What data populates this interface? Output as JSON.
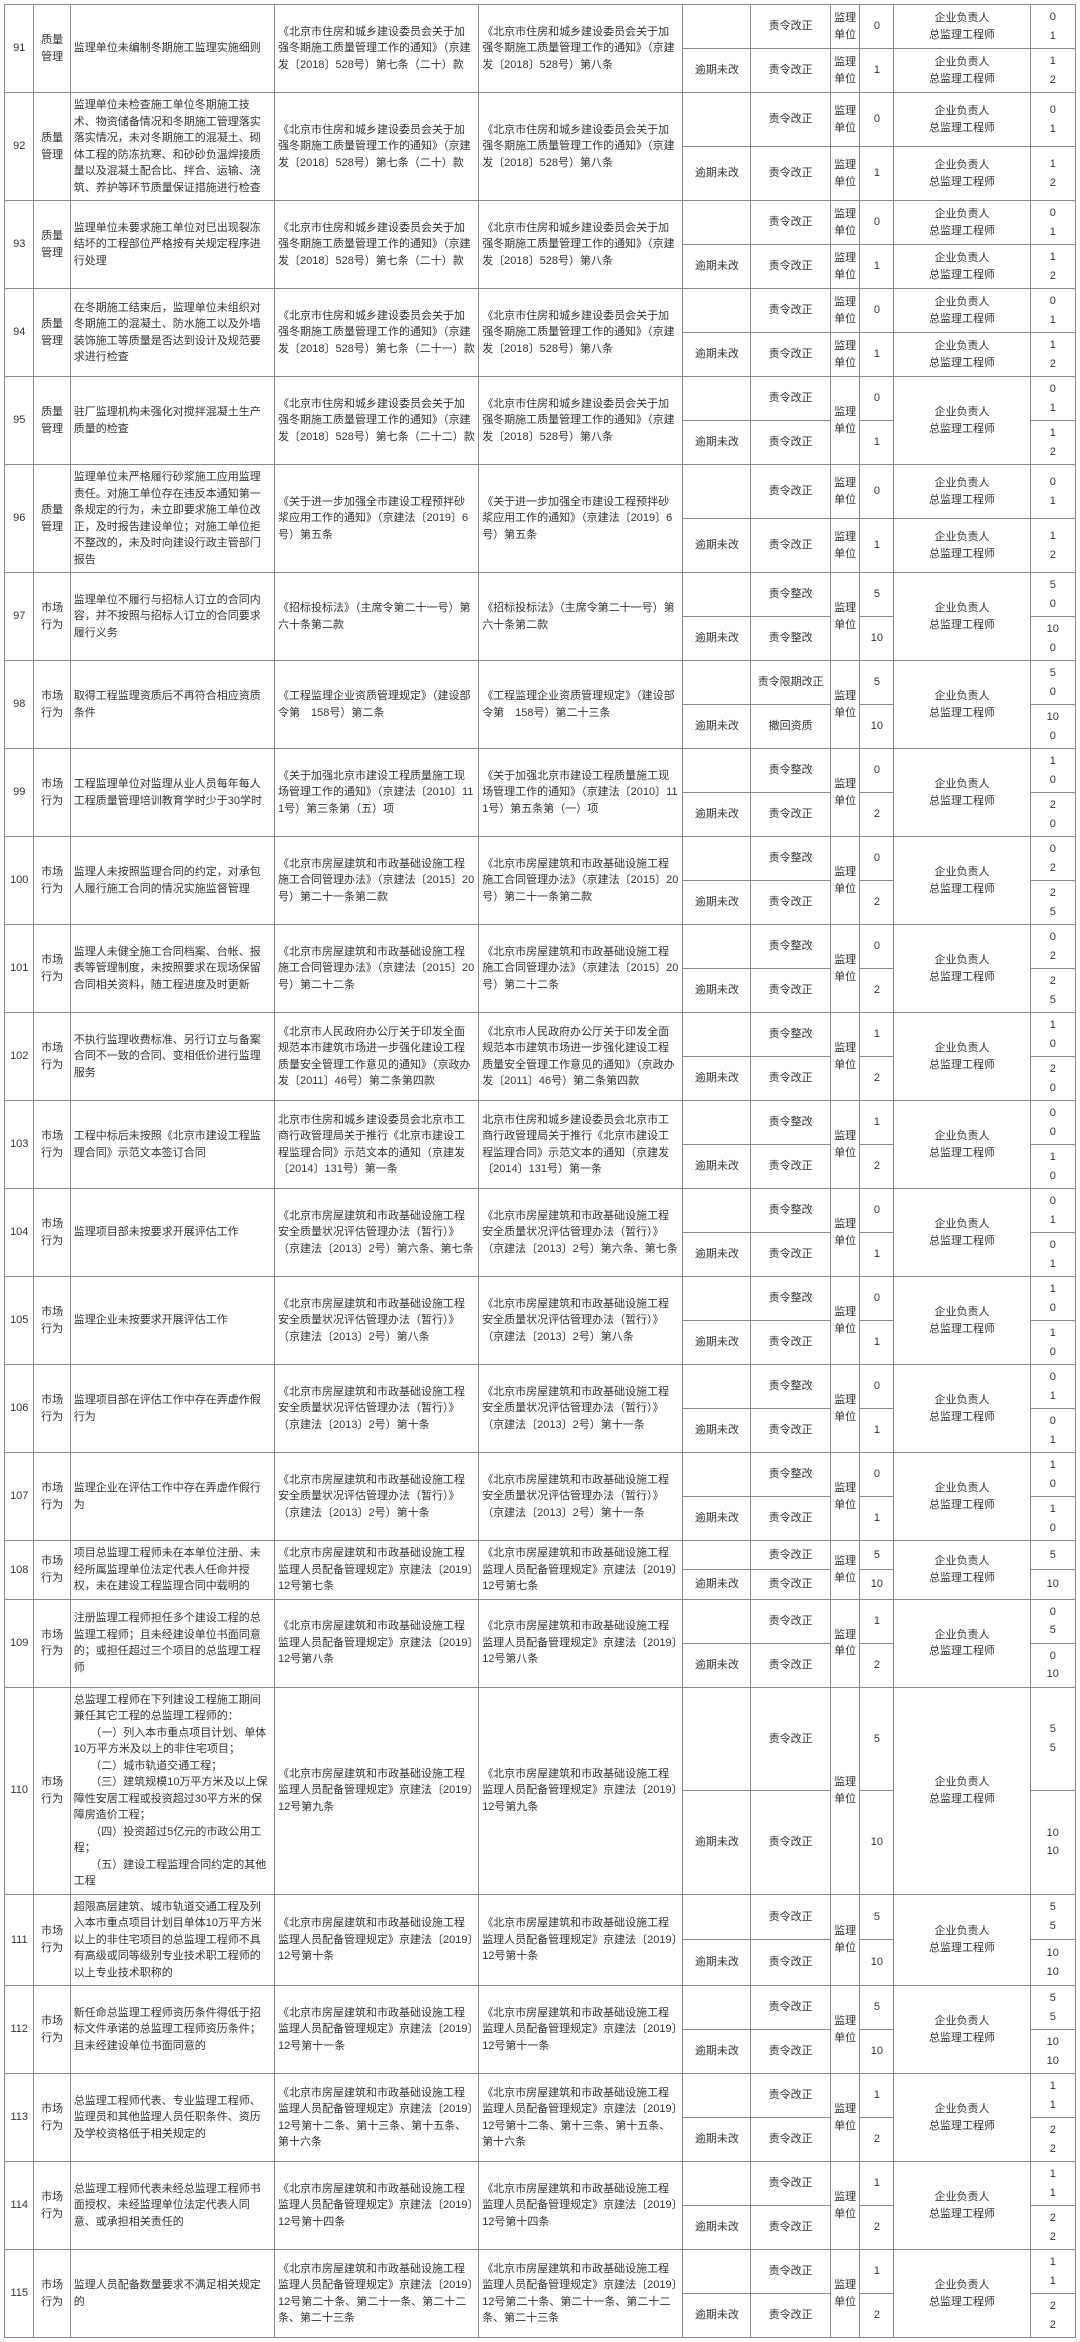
{
  "labels": {
    "deadline_not": "逾期未改",
    "order_fix": "责令改正",
    "order_rect": "责令整改",
    "order_limit": "责令限期改正",
    "revoke": "撤回资质",
    "unit": "监理单位",
    "resp": "企业负责人\n总监理工程师"
  },
  "rows": [
    {
      "idx": "91",
      "cat": "质量管理",
      "beh": "监理单位未编制冬期施工监理实施细则",
      "reg1": "《北京市住房和城乡建设委员会关于加强冬期施工质量管理工作的通知》（京建发〔2018〕528号）第七条（二十）款",
      "reg2": "《北京市住房和城乡建设委员会关于加强冬期施工质量管理工作的通知》（京建发〔2018〕528号）第八条",
      "sub": [
        {
          "stat": "",
          "act": "order_fix",
          "sc1": "0",
          "sc2": [
            "0",
            "1"
          ]
        },
        {
          "stat": "deadline_not",
          "act": "order_fix",
          "sc1": "1",
          "sc2": [
            "1",
            "2"
          ]
        }
      ]
    },
    {
      "idx": "92",
      "cat": "质量管理",
      "beh": "监理单位未检查施工单位冬期施工技术、物资储备情况和冬期施工管理落实落实情况，未对冬期施工的混凝土、砌体工程的防冻抗寒、和砂砂负温焊接质量以及混凝土配合比、拌合、运输、浇筑、养护等环节质量保证措施进行检查",
      "reg1": "《北京市住房和城乡建设委员会关于加强冬期施工质量管理工作的通知》（京建发〔2018〕528号）第七条（二十）款",
      "reg2": "《北京市住房和城乡建设委员会关于加强冬期施工质量管理工作的通知》（京建发〔2018〕528号）第八条",
      "sub": [
        {
          "stat": "",
          "act": "order_fix",
          "sc1": "0",
          "sc2": [
            "0",
            "1"
          ]
        },
        {
          "stat": "deadline_not",
          "act": "order_fix",
          "sc1": "1",
          "sc2": [
            "1",
            "2"
          ]
        }
      ]
    },
    {
      "idx": "93",
      "cat": "质量管理",
      "beh": "监理单位未要求施工单位对已出现裂冻结坏的工程部位严格按有关规定程序进行处理",
      "reg1": "《北京市住房和城乡建设委员会关于加强冬期施工质量管理工作的通知》（京建发〔2018〕528号）第七条（二十）款",
      "reg2": "《北京市住房和城乡建设委员会关于加强冬期施工质量管理工作的通知》（京建发〔2018〕528号）第八条",
      "sub": [
        {
          "stat": "",
          "act": "order_fix",
          "sc1": "0",
          "sc2": [
            "0",
            "1"
          ]
        },
        {
          "stat": "deadline_not",
          "act": "order_fix",
          "sc1": "1",
          "sc2": [
            "1",
            "2"
          ]
        }
      ]
    },
    {
      "idx": "94",
      "cat": "质量管理",
      "beh": "在冬期施工结束后，监理单位未组织对冬期施工的混凝土、防水施工以及外墙装饰施工等质量是否达到设计及规范要求进行检查",
      "reg1": "《北京市住房和城乡建设委员会关于加强冬期施工质量管理工作的通知》（京建发〔2018〕528号）第七条（二十一）款",
      "reg2": "《北京市住房和城乡建设委员会关于加强冬期施工质量管理工作的通知》（京建发〔2018〕528号）第八条",
      "sub": [
        {
          "stat": "",
          "act": "order_fix",
          "sc1": "0",
          "sc2": [
            "0",
            "1"
          ]
        },
        {
          "stat": "deadline_not",
          "act": "order_fix",
          "sc1": "1",
          "sc2": [
            "1",
            "2"
          ]
        }
      ]
    },
    {
      "idx": "95",
      "cat": "质量管理",
      "beh": "驻厂监理机构未强化对搅拌混凝土生产质量的检查",
      "reg1": "《北京市住房和城乡建设委员会关于加强冬期施工质量管理工作的通知》（京建发〔2018〕528号）第七条（二十二）款",
      "reg2": "《北京市住房和城乡建设委员会关于加强冬期施工质量管理工作的通知》（京建发〔2018〕528号）第八条",
      "sub": [
        {
          "stat": "",
          "act": "order_fix",
          "sc1": "0",
          "sc2": [
            "0",
            "1"
          ],
          "merge_unit": true,
          "merge_resp": true
        },
        {
          "stat": "deadline_not",
          "act": "order_fix",
          "sc1": "1",
          "sc2": [
            "1",
            "2"
          ]
        }
      ]
    },
    {
      "idx": "96",
      "cat": "质量管理",
      "beh": "监理单位未严格履行砂浆施工应用监理责任。对施工单位存在违反本通知第一条规定的行为，未立即要求施工单位改正，及时报告建设单位；对施工单位拒不整改的，未及时向建设行政主管部门报告",
      "reg1": "《关于进一步加强全市建设工程预拌砂浆应用工作的通知》（京建法〔2019〕6号）第五条",
      "reg2": "《关于进一步加强全市建设工程预拌砂浆应用工作的通知》（京建法〔2019〕6号）第五条",
      "sub": [
        {
          "stat": "",
          "act": "order_fix",
          "sc1": "0",
          "sc2": [
            "0",
            "1"
          ]
        },
        {
          "stat": "deadline_not",
          "act": "order_fix",
          "sc1": "1",
          "sc2": [
            "1",
            "2"
          ]
        }
      ]
    },
    {
      "idx": "97",
      "cat": "市场行为",
      "beh": "监理单位不履行与招标人订立的合同内容，并不按照与招标人订立的合同要求履行义务",
      "reg1": "《招标投标法》（主席令第二十一号）第六十条第二款",
      "reg2": "《招标投标法》（主席令第二十一号）第六十条第二款",
      "sub": [
        {
          "stat": "",
          "act": "order_rect",
          "sc1": "5",
          "sc2": [
            "5",
            "0"
          ],
          "merge_unit": true,
          "merge_resp": true
        },
        {
          "stat": "deadline_not",
          "act": "order_rect",
          "sc1": "10",
          "sc2": [
            "10",
            "0"
          ]
        }
      ]
    },
    {
      "idx": "98",
      "cat": "市场行为",
      "beh": "取得工程监理资质后不再符合相应资质条件",
      "reg1": "《工程监理企业资质管理规定》（建设部令第　158号）第二条",
      "reg2": "《工程监理企业资质管理规定》（建设部令第　158号）第二十三条",
      "sub": [
        {
          "stat": "",
          "act": "order_limit",
          "sc1": "5",
          "sc2": [
            "5",
            "0"
          ],
          "merge_unit": true,
          "merge_resp": true
        },
        {
          "stat": "deadline_not",
          "act": "revoke",
          "sc1": "10",
          "sc2": [
            "10",
            "0"
          ]
        }
      ]
    },
    {
      "idx": "99",
      "cat": "市场行为",
      "beh": "工程监理单位对监理从业人员每年每人工程质量管理培训教育学时少于30学时",
      "reg1": "《关于加强北京市建设工程质量施工现场管理工作的通知》（京建法〔2010〕111号）第三条第（五）项",
      "reg2": "《关于加强北京市建设工程质量施工现场管理工作的通知》（京建法〔2010〕111号）第五条第（一）项",
      "sub": [
        {
          "stat": "",
          "act": "order_rect",
          "sc1": "0",
          "sc2": [
            "1",
            "0"
          ],
          "merge_unit": true,
          "merge_resp": true
        },
        {
          "stat": "deadline_not",
          "act": "order_fix",
          "sc1": "2",
          "sc2": [
            "2",
            "0"
          ]
        }
      ]
    },
    {
      "idx": "100",
      "cat": "市场行为",
      "beh": "监理人未按照监理合同的约定，对承包人履行施工合同的情况实施监督管理",
      "reg1": "《北京市房屋建筑和市政基础设施工程施工合同管理办法》（京建法〔2015〕20号）第二十一条第二款",
      "reg2": "《北京市房屋建筑和市政基础设施工程施工合同管理办法》（京建法〔2015〕20号）第二十一条第二款",
      "sub": [
        {
          "stat": "",
          "act": "order_rect",
          "sc1": "0",
          "sc2": [
            "0",
            "2"
          ],
          "merge_unit": true,
          "merge_resp": true
        },
        {
          "stat": "deadline_not",
          "act": "order_fix",
          "sc1": "2",
          "sc2": [
            "2",
            "5"
          ]
        }
      ]
    },
    {
      "idx": "101",
      "cat": "市场行为",
      "beh": "监理人未健全施工合同档案、台帐、报表等管理制度，未按照要求在现场保留合同相关资料，随工程进度及时更新",
      "reg1": "《北京市房屋建筑和市政基础设施工程施工合同管理办法》（京建法〔2015〕20号）第二十二条",
      "reg2": "《北京市房屋建筑和市政基础设施工程施工合同管理办法》（京建法〔2015〕20号）第二十二条",
      "sub": [
        {
          "stat": "",
          "act": "order_rect",
          "sc1": "0",
          "sc2": [
            "0",
            "2"
          ],
          "merge_unit": true,
          "merge_resp": true
        },
        {
          "stat": "deadline_not",
          "act": "order_fix",
          "sc1": "2",
          "sc2": [
            "2",
            "5"
          ]
        }
      ]
    },
    {
      "idx": "102",
      "cat": "市场行为",
      "beh": "不执行监理收费标准、另行订立与备案合同不一致的合同、变相低价进行监理服务",
      "reg1": "《北京市人民政府办公厅关于印发全面规范本市建筑市场进一步强化建设工程质量安全管理工作意见的通知》（京政办发〔2011〕46号）第二条第四款",
      "reg2": "《北京市人民政府办公厅关于印发全面规范本市建筑市场进一步强化建设工程质量安全管理工作意见的通知》（京政办发〔2011〕46号）第二条第四款",
      "sub": [
        {
          "stat": "",
          "act": "order_rect",
          "sc1": "1",
          "sc2": [
            "1",
            "0"
          ],
          "merge_unit": true,
          "merge_resp": true
        },
        {
          "stat": "deadline_not",
          "act": "order_fix",
          "sc1": "2",
          "sc2": [
            "2",
            "0"
          ]
        }
      ]
    },
    {
      "idx": "103",
      "cat": "市场行为",
      "beh": "工程中标后未按照《北京市建设工程监理合同》示范文本签订合同",
      "reg1": "北京市住房和城乡建设委员会北京市工商行政管理局关于推行《北京市建设工程监理合同》示范文本的通知（京建发〔2014〕131号）第一条",
      "reg2": "北京市住房和城乡建设委员会北京市工商行政管理局关于推行《北京市建设工程监理合同》示范文本的通知（京建发〔2014〕131号）第一条",
      "sub": [
        {
          "stat": "",
          "act": "order_rect",
          "sc1": "1",
          "sc2": [
            "0",
            "0"
          ],
          "merge_unit": true,
          "merge_resp": true
        },
        {
          "stat": "deadline_not",
          "act": "order_fix",
          "sc1": "2",
          "sc2": [
            "1",
            "0"
          ]
        }
      ]
    },
    {
      "idx": "104",
      "cat": "市场行为",
      "beh": "监理项目部未按要求开展评估工作",
      "reg1": "《北京市房屋建筑和市政基础设施工程安全质量状况评估管理办法（暂行）》（京建法〔2013〕2号）第六条、第七条",
      "reg2": "《北京市房屋建筑和市政基础设施工程安全质量状况评估管理办法（暂行）》（京建法〔2013〕2号）第六条、第七条",
      "sub": [
        {
          "stat": "",
          "act": "order_rect",
          "sc1": "0",
          "sc2": [
            "0",
            "1"
          ],
          "merge_unit": true,
          "merge_resp": true
        },
        {
          "stat": "deadline_not",
          "act": "order_fix",
          "sc1": "1",
          "sc2": [
            "0",
            "1"
          ]
        }
      ]
    },
    {
      "idx": "105",
      "cat": "市场行为",
      "beh": "监理企业未按要求开展评估工作",
      "reg1": "《北京市房屋建筑和市政基础设施工程安全质量状况评估管理办法（暂行）》（京建法〔2013〕2号）第八条",
      "reg2": "《北京市房屋建筑和市政基础设施工程安全质量状况评估管理办法（暂行）》（京建法〔2013〕2号）第八条",
      "sub": [
        {
          "stat": "",
          "act": "order_rect",
          "sc1": "0",
          "sc2": [
            "1",
            "0"
          ],
          "merge_unit": true,
          "merge_resp": true
        },
        {
          "stat": "deadline_not",
          "act": "order_fix",
          "sc1": "1",
          "sc2": [
            "1",
            "0"
          ]
        }
      ]
    },
    {
      "idx": "106",
      "cat": "市场行为",
      "beh": "监理项目部在评估工作中存在弄虚作假行为",
      "reg1": "《北京市房屋建筑和市政基础设施工程安全质量状况评估管理办法（暂行）》（京建法〔2013〕2号）第十条",
      "reg2": "《北京市房屋建筑和市政基础设施工程安全质量状况评估管理办法（暂行）》（京建法〔2013〕2号）第十一条",
      "sub": [
        {
          "stat": "",
          "act": "order_rect",
          "sc1": "0",
          "sc2": [
            "0",
            "1"
          ],
          "merge_unit": true,
          "merge_resp": true
        },
        {
          "stat": "deadline_not",
          "act": "order_fix",
          "sc1": "1",
          "sc2": [
            "0",
            "1"
          ]
        }
      ]
    },
    {
      "idx": "107",
      "cat": "市场行为",
      "beh": "监理企业在评估工作中存在弄虚作假行为",
      "reg1": "《北京市房屋建筑和市政基础设施工程安全质量状况评估管理办法（暂行）》（京建法〔2013〕2号）第十条",
      "reg2": "《北京市房屋建筑和市政基础设施工程安全质量状况评估管理办法（暂行）》（京建法〔2013〕2号）第十一条",
      "sub": [
        {
          "stat": "",
          "act": "order_rect",
          "sc1": "0",
          "sc2": [
            "1",
            "0"
          ],
          "merge_unit": true,
          "merge_resp": true
        },
        {
          "stat": "deadline_not",
          "act": "order_fix",
          "sc1": "1",
          "sc2": [
            "1",
            "0"
          ]
        }
      ]
    },
    {
      "idx": "108",
      "cat": "市场行为",
      "beh": "项目总监理工程师未在本单位注册、未经所属监理单位法定代表人任命并授权，未在建设工程监理合同中载明的",
      "reg1": "《北京市房屋建筑和市政基础设施工程监理人员配备管理规定》京建法〔2019〕12号第七条",
      "reg2": "《北京市房屋建筑和市政基础设施工程监理人员配备管理规定》京建法〔2019〕12号第七条",
      "sub": [
        {
          "stat": "",
          "act": "order_fix",
          "sc1": "5",
          "sc2": [
            "5"
          ],
          "merge_unit": true,
          "merge_resp": true,
          "single_sc2": true
        },
        {
          "stat": "deadline_not",
          "act": "order_fix",
          "sc1": "10",
          "sc2": [
            "10"
          ],
          "single_sc2": true
        }
      ]
    },
    {
      "idx": "109",
      "cat": "市场行为",
      "beh": "注册监理工程师担任多个建设工程的总监理工程师；且未经建设单位书面同意的；或担任超过三个项目的总监理工程师",
      "reg1": "《北京市房屋建筑和市政基础设施工程监理人员配备管理规定》京建法〔2019〕12号第八条",
      "reg2": "《北京市房屋建筑和市政基础设施工程监理人员配备管理规定》京建法〔2019〕12号第八条",
      "sub": [
        {
          "stat": "",
          "act": "order_fix",
          "sc1": "1",
          "sc2": [
            "0",
            "5"
          ],
          "merge_unit": true,
          "merge_resp": true
        },
        {
          "stat": "deadline_not",
          "act": "order_fix",
          "sc1": "2",
          "sc2": [
            "0",
            "10"
          ]
        }
      ]
    },
    {
      "idx": "110",
      "cat": "市场行为",
      "beh": "总监理工程师在下列建设工程施工期间兼任其它工程的总监理工程师的：\n　　（一）列入本市重点项目计划、单体10万平方米及以上的非住宅项目；\n　　（二）城市轨道交通工程；\n　　（三）建筑规模10万平方米及以上保障性安居工程或投资超过30平方米的保障房造价工程；\n　　（四）投资超过5亿元的市政公用工程；\n　　（五）建设工程监理合同约定的其他工程",
      "reg1": "《北京市房屋建筑和市政基础设施工程监理人员配备管理规定》京建法〔2019〕12号第九条",
      "reg2": "《北京市房屋建筑和市政基础设施工程监理人员配备管理规定》京建法〔2019〕12号第九条",
      "sub": [
        {
          "stat": "",
          "act": "order_fix",
          "sc1": "5",
          "sc2": [
            "5",
            "5"
          ],
          "merge_unit": true,
          "merge_resp": true
        },
        {
          "stat": "deadline_not",
          "act": "order_fix",
          "sc1": "10",
          "sc2": [
            "10",
            "10"
          ]
        }
      ]
    },
    {
      "idx": "111",
      "cat": "市场行为",
      "beh": "超限高层建筑、城市轨道交通工程及列入本市重点项目计划目单体10万平方米以上的非住宅项目的总监理工程师不具有高级或同等级别专业技术职工程师的以上专业技术职称的",
      "reg1": "《北京市房屋建筑和市政基础设施工程监理人员配备管理规定》京建法〔2019〕12号第十条",
      "reg2": "《北京市房屋建筑和市政基础设施工程监理人员配备管理规定》京建法〔2019〕12号第十条",
      "sub": [
        {
          "stat": "",
          "act": "order_fix",
          "sc1": "5",
          "sc2": [
            "5",
            "5"
          ],
          "merge_unit": true,
          "merge_resp": true
        },
        {
          "stat": "deadline_not",
          "act": "order_fix",
          "sc1": "10",
          "sc2": [
            "10",
            "10"
          ]
        }
      ]
    },
    {
      "idx": "112",
      "cat": "市场行为",
      "beh": "新任命总监理工程师资历条件得低于招标文件承诺的总监理工程师资历条件；且未经建设单位书面同意的",
      "reg1": "《北京市房屋建筑和市政基础设施工程监理人员配备管理规定》京建法〔2019〕12号第十一条",
      "reg2": "《北京市房屋建筑和市政基础设施工程监理人员配备管理规定》京建法〔2019〕12号第十一条",
      "sub": [
        {
          "stat": "",
          "act": "order_fix",
          "sc1": "5",
          "sc2": [
            "5",
            "5"
          ],
          "merge_unit": true,
          "merge_resp": true
        },
        {
          "stat": "deadline_not",
          "act": "order_fix",
          "sc1": "10",
          "sc2": [
            "10",
            "10"
          ]
        }
      ]
    },
    {
      "idx": "113",
      "cat": "市场行为",
      "beh": "总监理工程师代表、专业监理工程师、监理员和其他监理人员任职条件、资历及学校资格低于相关规定的",
      "reg1": "《北京市房屋建筑和市政基础设施工程监理人员配备管理规定》京建法〔2019〕12号第十二条、第十三条、第十五条、第十六条",
      "reg2": "《北京市房屋建筑和市政基础设施工程监理人员配备管理规定》京建法〔2019〕12号第十二条、第十三条、第十五条、第十六条",
      "sub": [
        {
          "stat": "",
          "act": "order_fix",
          "sc1": "1",
          "sc2": [
            "1",
            "1"
          ],
          "merge_unit": true,
          "merge_resp": true
        },
        {
          "stat": "deadline_not",
          "act": "order_fix",
          "sc1": "2",
          "sc2": [
            "2",
            "2"
          ]
        }
      ]
    },
    {
      "idx": "114",
      "cat": "市场行为",
      "beh": "总监理工程师代表未经总监理工程师书面授权、未经监理单位法定代表人同意、或承担相关责任的",
      "reg1": "《北京市房屋建筑和市政基础设施工程监理人员配备管理规定》京建法〔2019〕12号第十四条",
      "reg2": "《北京市房屋建筑和市政基础设施工程监理人员配备管理规定》京建法〔2019〕12号第十四条",
      "sub": [
        {
          "stat": "",
          "act": "order_fix",
          "sc1": "1",
          "sc2": [
            "1",
            "1"
          ],
          "merge_unit": true,
          "merge_resp": true
        },
        {
          "stat": "deadline_not",
          "act": "order_fix",
          "sc1": "2",
          "sc2": [
            "2",
            "2"
          ]
        }
      ]
    },
    {
      "idx": "115",
      "cat": "市场行为",
      "beh": "监理人员配备数量要求不满足相关规定的",
      "reg1": "《北京市房屋建筑和市政基础设施工程监理人员配备管理规定》京建法〔2019〕12号第二十条、第二十一条、第二十二条、第二十三条",
      "reg2": "《北京市房屋建筑和市政基础设施工程监理人员配备管理规定》京建法〔2019〕12号第二十条、第二十一条、第二十二条、第二十三条",
      "sub": [
        {
          "stat": "",
          "act": "order_fix",
          "sc1": "1",
          "sc2": [
            "1",
            "1"
          ],
          "merge_unit": true,
          "merge_resp": true
        },
        {
          "stat": "deadline_not",
          "act": "order_fix",
          "sc1": "2",
          "sc2": [
            "2",
            "2"
          ]
        }
      ]
    }
  ]
}
